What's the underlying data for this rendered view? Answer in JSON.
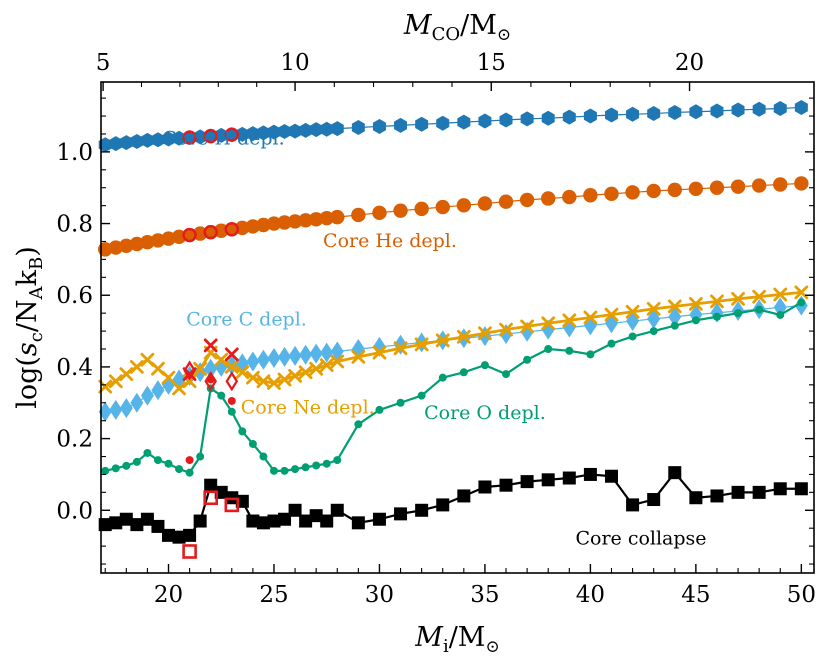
{
  "chart_data": {
    "type": "scatter",
    "title": "",
    "xlabel": {
      "main": "M",
      "sub": "i",
      "rest": "/M",
      "sun": "⊙"
    },
    "ylabel": {
      "pre": "log(",
      "s": "s",
      "sub_c": "c",
      "mid": "/N",
      "sub_A": "A",
      "k": "k",
      "sub_B": "B",
      "post": ")"
    },
    "x2label": {
      "main": "M",
      "sub": "CO",
      "rest": "/M",
      "sun": "⊙"
    },
    "xlim": [
      16.8,
      50.6
    ],
    "ylim": [
      -0.175,
      1.195
    ],
    "x_ticks": [
      20,
      25,
      30,
      35,
      40,
      45,
      50
    ],
    "x_tick_labels": [
      "20",
      "25",
      "30",
      "35",
      "40",
      "45",
      "50"
    ],
    "y_ticks": [
      0.0,
      0.2,
      0.4,
      0.6,
      0.8,
      1.0
    ],
    "y_tick_labels": [
      "0.0",
      "0.2",
      "0.4",
      "0.6",
      "0.8",
      "1.0"
    ],
    "x2_ticks_Mi": [
      16.9,
      26.0,
      35.3,
      44.7
    ],
    "x2_tick_labels": [
      "5",
      "10",
      "15",
      "20"
    ],
    "grid": false,
    "colors": {
      "h": "#1f77b4",
      "he": "#d95f02",
      "c": "#56b4e9",
      "ne": "#e69f00",
      "o": "#009e73",
      "cc": "#000000",
      "highlight": "#e41a1c"
    },
    "series": [
      {
        "key": "h",
        "marker": "hexagon",
        "label": "Core H depl.",
        "label_at": [
          22.6,
          1.02
        ],
        "x": [
          17,
          17.5,
          18,
          18.5,
          19,
          19.5,
          20,
          20.5,
          21,
          21.5,
          22,
          22.5,
          23,
          23.5,
          24,
          24.5,
          25,
          25.5,
          26,
          26.5,
          27,
          27.5,
          28,
          29,
          30,
          31,
          32,
          33,
          34,
          35,
          36,
          37,
          38,
          39,
          40,
          41,
          42,
          43,
          44,
          45,
          46,
          47,
          48,
          49,
          50
        ],
        "y": [
          1.02,
          1.023,
          1.026,
          1.029,
          1.032,
          1.034,
          1.036,
          1.038,
          1.04,
          1.042,
          1.044,
          1.046,
          1.048,
          1.049,
          1.051,
          1.053,
          1.055,
          1.057,
          1.058,
          1.06,
          1.062,
          1.063,
          1.065,
          1.068,
          1.071,
          1.074,
          1.077,
          1.08,
          1.083,
          1.086,
          1.089,
          1.092,
          1.094,
          1.097,
          1.1,
          1.103,
          1.105,
          1.107,
          1.11,
          1.112,
          1.114,
          1.117,
          1.119,
          1.121,
          1.124
        ]
      },
      {
        "key": "he",
        "marker": "circle",
        "label": "Core He depl.",
        "label_at": [
          30.5,
          0.735
        ],
        "x": [
          17,
          17.5,
          18,
          18.5,
          19,
          19.5,
          20,
          20.5,
          21,
          21.5,
          22,
          22.5,
          23,
          23.5,
          24,
          24.5,
          25,
          25.5,
          26,
          26.5,
          27,
          27.5,
          28,
          29,
          30,
          31,
          32,
          33,
          34,
          35,
          36,
          37,
          38,
          39,
          40,
          41,
          42,
          43,
          44,
          45,
          46,
          47,
          48,
          49,
          50
        ],
        "y": [
          0.728,
          0.733,
          0.738,
          0.743,
          0.748,
          0.753,
          0.758,
          0.763,
          0.768,
          0.772,
          0.776,
          0.78,
          0.784,
          0.788,
          0.792,
          0.796,
          0.8,
          0.803,
          0.806,
          0.809,
          0.812,
          0.815,
          0.818,
          0.824,
          0.83,
          0.836,
          0.841,
          0.846,
          0.851,
          0.856,
          0.861,
          0.866,
          0.87,
          0.874,
          0.879,
          0.883,
          0.887,
          0.891,
          0.894,
          0.897,
          0.9,
          0.903,
          0.906,
          0.909,
          0.912
        ]
      },
      {
        "key": "c",
        "marker": "diamond",
        "label": "Core C depl.",
        "label_at": [
          23.7,
          0.515
        ],
        "x": [
          17,
          17.5,
          18,
          18.5,
          19,
          19.5,
          20,
          20.5,
          21,
          21.5,
          22,
          22.5,
          23,
          23.5,
          24,
          24.5,
          25,
          25.5,
          26,
          26.5,
          27,
          27.5,
          28,
          29,
          30,
          31,
          32,
          33,
          34,
          35,
          36,
          37,
          38,
          39,
          40,
          41,
          42,
          43,
          44,
          45,
          46,
          47,
          48,
          49,
          50
        ],
        "y": [
          0.275,
          0.28,
          0.285,
          0.3,
          0.32,
          0.335,
          0.35,
          0.365,
          0.375,
          0.385,
          0.395,
          0.4,
          0.405,
          0.41,
          0.415,
          0.42,
          0.425,
          0.428,
          0.431,
          0.434,
          0.437,
          0.44,
          0.443,
          0.45,
          0.456,
          0.462,
          0.468,
          0.474,
          0.48,
          0.486,
          0.492,
          0.498,
          0.504,
          0.51,
          0.516,
          0.522,
          0.528,
          0.534,
          0.54,
          0.546,
          0.551,
          0.556,
          0.561,
          0.566,
          0.571
        ]
      },
      {
        "key": "ne",
        "marker": "x",
        "label": "Core Ne depl.",
        "label_at": [
          26.6,
          0.27
        ],
        "x": [
          17,
          17.5,
          18,
          18.5,
          19,
          19.5,
          20,
          20.5,
          21,
          21.5,
          22,
          22.5,
          23,
          23.5,
          24,
          24.5,
          25,
          25.5,
          26,
          26.5,
          27,
          27.5,
          28,
          29,
          30,
          31,
          32,
          33,
          34,
          35,
          36,
          37,
          38,
          39,
          40,
          41,
          42,
          43,
          44,
          45,
          46,
          47,
          48,
          49,
          50
        ],
        "y": [
          0.345,
          0.36,
          0.38,
          0.4,
          0.42,
          0.395,
          0.37,
          0.34,
          0.36,
          0.395,
          0.44,
          0.42,
          0.4,
          0.385,
          0.37,
          0.36,
          0.355,
          0.365,
          0.375,
          0.385,
          0.395,
          0.405,
          0.415,
          0.428,
          0.44,
          0.452,
          0.463,
          0.474,
          0.484,
          0.494,
          0.504,
          0.513,
          0.522,
          0.53,
          0.538,
          0.546,
          0.554,
          0.562,
          0.569,
          0.576,
          0.583,
          0.59,
          0.596,
          0.602,
          0.608
        ]
      },
      {
        "key": "o",
        "marker": "dot",
        "label": "Core O depl.",
        "label_at": [
          35.0,
          0.255
        ],
        "x": [
          17,
          17.5,
          18,
          18.5,
          19,
          19.5,
          20,
          20.5,
          21,
          21.5,
          22,
          22.5,
          23,
          23.5,
          24,
          24.5,
          25,
          25.5,
          26,
          26.5,
          27,
          27.5,
          28,
          29,
          30,
          31,
          32,
          33,
          34,
          35,
          36,
          37,
          38,
          39,
          40,
          41,
          42,
          43,
          44,
          45,
          46,
          47,
          48,
          49,
          50
        ],
        "y": [
          0.11,
          0.117,
          0.124,
          0.135,
          0.16,
          0.14,
          0.13,
          0.115,
          0.105,
          0.15,
          0.34,
          0.32,
          0.275,
          0.22,
          0.185,
          0.15,
          0.11,
          0.11,
          0.115,
          0.12,
          0.125,
          0.13,
          0.14,
          0.24,
          0.28,
          0.3,
          0.32,
          0.37,
          0.385,
          0.405,
          0.38,
          0.42,
          0.45,
          0.445,
          0.435,
          0.465,
          0.485,
          0.5,
          0.515,
          0.53,
          0.54,
          0.55,
          0.56,
          0.545,
          0.58
        ]
      },
      {
        "key": "cc",
        "marker": "square",
        "label": "Core collapse",
        "label_at": [
          42.4,
          -0.095
        ],
        "x": [
          17,
          17.5,
          18,
          18.5,
          19,
          19.5,
          20,
          20.5,
          21,
          21.5,
          22,
          22.5,
          23,
          23.5,
          24,
          24.5,
          25,
          25.5,
          26,
          26.5,
          27,
          27.5,
          28,
          29,
          30,
          31,
          32,
          33,
          34,
          35,
          36,
          37,
          38,
          39,
          40,
          41,
          42,
          43,
          44,
          45,
          46,
          47,
          48,
          49,
          50
        ],
        "y": [
          -0.04,
          -0.035,
          -0.025,
          -0.04,
          -0.025,
          -0.045,
          -0.07,
          -0.075,
          -0.07,
          -0.03,
          0.07,
          0.05,
          0.035,
          0.025,
          -0.03,
          -0.035,
          -0.03,
          -0.025,
          0.0,
          -0.03,
          -0.015,
          -0.03,
          0.0,
          -0.035,
          -0.025,
          -0.01,
          0.0,
          0.015,
          0.04,
          0.065,
          0.07,
          0.08,
          0.085,
          0.09,
          0.1,
          0.095,
          0.015,
          0.03,
          0.105,
          0.035,
          0.04,
          0.05,
          0.05,
          0.06,
          0.06
        ]
      }
    ],
    "highlights": [
      {
        "key": "h",
        "marker": "circle_open",
        "x": [
          21,
          22,
          23
        ],
        "y": [
          1.04,
          1.044,
          1.048
        ]
      },
      {
        "key": "he",
        "marker": "circle_open",
        "x": [
          21,
          22,
          23
        ],
        "y": [
          0.768,
          0.776,
          0.784
        ]
      },
      {
        "key": "c",
        "marker": "diamond_open",
        "x": [
          21,
          22,
          23
        ],
        "y": [
          0.39,
          0.36,
          0.36
        ]
      },
      {
        "key": "ne",
        "marker": "x",
        "x": [
          21,
          22,
          23
        ],
        "y": [
          0.38,
          0.46,
          0.435
        ]
      },
      {
        "key": "o",
        "marker": "dot",
        "x": [
          21,
          22,
          23
        ],
        "y": [
          0.14,
          0.365,
          0.305
        ]
      },
      {
        "key": "cc",
        "marker": "square_open",
        "x": [
          21,
          22,
          23
        ],
        "y": [
          -0.115,
          0.035,
          0.015
        ]
      }
    ]
  }
}
